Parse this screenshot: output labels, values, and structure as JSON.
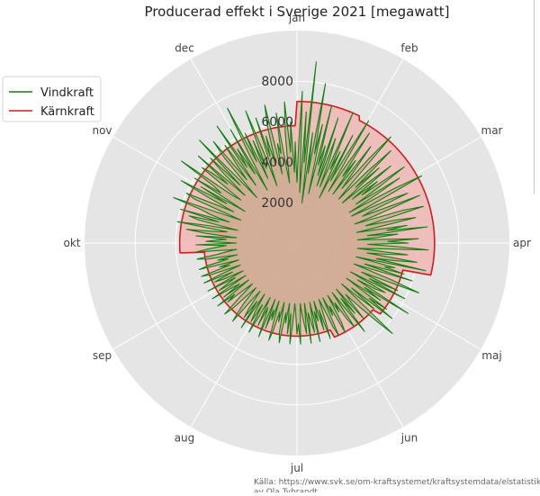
{
  "chart_data": {
    "type": "polar-line",
    "title": "Producerad effekt i Sverige 2021 [megawatt]",
    "theta_labels": [
      "jan",
      "feb",
      "mar",
      "apr",
      "maj",
      "jun",
      "jul",
      "aug",
      "sep",
      "okt",
      "nov",
      "dec"
    ],
    "r_ticks": [
      2000,
      4000,
      6000,
      8000
    ],
    "r_tick_labels": [
      "2000",
      "4000",
      "6000",
      "8000"
    ],
    "rlim": [
      0,
      10500
    ],
    "grid": true,
    "legend_position": "upper-left",
    "source": "Källa: https://www.svk.se/om-kraftsystemet/kraftsystemdata/elstatistik/\nav Ola Tybrandt",
    "series": [
      {
        "name": "Vindkraft",
        "color": "#138013",
        "fill": "#b9a27a",
        "values": [
          3000,
          5000,
          7500,
          2500,
          6500,
          4000,
          9000,
          2000,
          5500,
          3500,
          8000,
          4500,
          6000,
          2500,
          7000,
          4000,
          5000,
          3500,
          6500,
          3000,
          5500,
          4500,
          3000,
          7000,
          4000,
          5000,
          2500,
          6000,
          3500,
          5000,
          7000,
          3000,
          4500,
          6500,
          4000,
          5000,
          3000,
          6000,
          4500,
          3500,
          5500,
          7000,
          4000,
          3000,
          5000,
          6500,
          4000,
          5500,
          3000,
          4500,
          6000,
          3500,
          5000,
          4000,
          6500,
          5000,
          3500,
          6000,
          4500,
          3000,
          5500,
          7000,
          4500,
          3000,
          5000,
          6000,
          4000,
          3500,
          6500,
          5000,
          4000,
          3000,
          5500,
          6500,
          4500,
          3500,
          5000,
          6000,
          4000,
          3000,
          5500,
          4500,
          6500,
          3500,
          5000,
          4000,
          3000,
          6000,
          4500,
          5500,
          3500,
          5000,
          6500,
          4000,
          3000,
          5500,
          4500,
          3500,
          6000,
          5000,
          4000,
          6500,
          3000,
          5000,
          4500,
          5500,
          3500,
          6000,
          4000,
          3000,
          5000,
          6500,
          4500,
          3500,
          5500,
          4000,
          6000,
          3000,
          5000,
          4500,
          3500,
          6500,
          4000,
          5000,
          3000,
          5500,
          4500,
          6000,
          3500,
          5000,
          4000,
          3000,
          6500,
          5500,
          4500,
          3500,
          4000,
          5000,
          3000,
          4500,
          3500,
          5500,
          4000,
          3000,
          5000,
          4500,
          3500,
          4000,
          3000,
          4500,
          5000,
          3500,
          4000,
          3000,
          5000,
          4500,
          3500,
          3000,
          4000,
          5000,
          3500,
          4500,
          3000,
          4000,
          3500,
          5000,
          3000,
          4500,
          4000,
          3500,
          5000,
          3000,
          4500,
          4000,
          3500,
          3000,
          5000,
          4000,
          4500,
          3500,
          3000,
          4000,
          5000,
          3500,
          4500,
          3000,
          4000,
          3500,
          5000,
          4500,
          3000,
          4000,
          3500,
          4500,
          5000,
          3000,
          4000,
          3500,
          4500,
          3000,
          5000,
          4000,
          3500,
          4500,
          3000,
          4000,
          5000,
          3500,
          4500,
          4000,
          3000,
          5000,
          3500,
          4500,
          4000,
          3000,
          3500,
          5000,
          4500,
          4000,
          3000,
          3500,
          4500,
          5000,
          4000,
          3000,
          3500,
          4500,
          4000,
          5000,
          3000,
          4500,
          3500,
          4000,
          5000,
          3000,
          4500,
          4000,
          3500,
          5000,
          3000,
          4000,
          4500,
          3500,
          5000,
          4000,
          3000,
          4500,
          5000,
          3500,
          4000,
          3000,
          5000,
          4500,
          3500,
          4000,
          3000,
          4500,
          5000,
          4000,
          3500,
          3000,
          5000,
          4500,
          4000,
          3500,
          5000,
          3000,
          4500,
          4000,
          3500,
          5000,
          3000,
          4500,
          5500,
          4000,
          3500,
          6000,
          4500,
          3000,
          5000,
          5500,
          4000,
          6000,
          3500,
          4500,
          5000,
          6500,
          4000,
          3000,
          5500,
          6000,
          4500,
          3500,
          5000,
          6500,
          4000,
          5500,
          3000,
          6000,
          4500,
          5000,
          7000,
          4000,
          3500,
          6000,
          5500,
          4500,
          6500,
          3500,
          5000,
          6000,
          4000,
          7000,
          4500,
          3000,
          5500,
          6500,
          4000,
          5000,
          6000,
          3500,
          7000,
          4500,
          5500,
          4000,
          6500,
          3000,
          5000,
          7500,
          4500,
          6000,
          3500,
          5500,
          4000,
          7000,
          5000,
          3000,
          6500,
          4500,
          5500,
          4000,
          6000,
          7000,
          3500,
          5000,
          4500,
          6500,
          4000,
          3000,
          5500,
          7000,
          4500,
          6000,
          3500,
          5000
        ]
      },
      {
        "name": "Kärnkraft",
        "color": "#cc1f1f",
        "fill": "#f2b6b6",
        "values": [
          7000,
          7000,
          7000,
          7000,
          7000,
          7000,
          7000,
          7000,
          7000,
          7000,
          7000,
          7000,
          7000,
          7000,
          7000,
          7000,
          7000,
          7000,
          7000,
          7000,
          7000,
          7000,
          7000,
          7000,
          7000,
          7000,
          7000,
          7000,
          7000,
          7000,
          7000,
          6800,
          6800,
          6800,
          6800,
          6800,
          6800,
          6800,
          6800,
          6800,
          6800,
          6800,
          6800,
          6800,
          6800,
          6800,
          6800,
          6800,
          6800,
          6800,
          6800,
          6800,
          6800,
          6800,
          6800,
          6800,
          6800,
          6800,
          6800,
          6800,
          6800,
          6800,
          6800,
          6800,
          6800,
          6800,
          6800,
          6800,
          6800,
          6800,
          6800,
          6800,
          6800,
          6800,
          6800,
          6800,
          6800,
          6800,
          6800,
          6800,
          6800,
          6800,
          6800,
          6800,
          6800,
          6800,
          6800,
          6800,
          6800,
          6800,
          6800,
          6800,
          6800,
          6800,
          6800,
          6800,
          6800,
          6800,
          6800,
          6800,
          6800,
          6800,
          6800,
          6800,
          6800,
          6800,
          6800,
          6800,
          6800,
          6800,
          6800,
          6800,
          6800,
          6800,
          6800,
          6800,
          6800,
          6800,
          6800,
          6800,
          5400,
          5400,
          5400,
          5400,
          5400,
          5400,
          5400,
          5400,
          5400,
          5400,
          5400,
          5400,
          5400,
          5400,
          5400,
          5400,
          5400,
          5400,
          5400,
          5400,
          5400,
          5400,
          5400,
          5400,
          5400,
          5400,
          5400,
          5400,
          5400,
          5400,
          5400,
          5000,
          5000,
          5000,
          5000,
          5000,
          5000,
          5000,
          5000,
          5000,
          5000,
          5000,
          5000,
          5000,
          5000,
          5000,
          5000,
          5000,
          5000,
          5000,
          5000,
          5000,
          5000,
          5000,
          5000,
          5000,
          5000,
          5000,
          5000,
          5000,
          5000,
          5000,
          5000,
          4600,
          4600,
          4600,
          4600,
          4600,
          4600,
          4600,
          4600,
          4600,
          4600,
          4600,
          4600,
          4600,
          4600,
          4600,
          4600,
          4600,
          4600,
          4600,
          4600,
          4600,
          4600,
          4600,
          4600,
          4600,
          4600,
          4600,
          4600,
          4600,
          4600,
          4600,
          4600,
          4600,
          4600,
          4600,
          4600,
          4600,
          4600,
          4600,
          4600,
          4600,
          4600,
          4600,
          4600,
          4600,
          4600,
          4600,
          4600,
          4600,
          4600,
          4600,
          4600,
          4600,
          4600,
          4600,
          4600,
          4600,
          4600,
          4600,
          4600,
          4600,
          4600,
          4600,
          4600,
          4600,
          4600,
          4600,
          4600,
          4600,
          4600,
          4600,
          4600,
          4600,
          4600,
          4600,
          4600,
          4600,
          4600,
          4600,
          4600,
          4600,
          4600,
          4600,
          4600,
          4600,
          4600,
          4600,
          4600,
          4600,
          4600,
          4600,
          4600,
          4600,
          4600,
          4600,
          4600,
          4600,
          4600,
          4600,
          4600,
          4600,
          4600,
          4600,
          4600,
          4600,
          4600,
          4600,
          4600,
          4600,
          4600,
          4600,
          4600,
          4600,
          4600,
          4600,
          4600,
          4600,
          4600,
          4600,
          4600,
          4600,
          4600,
          5800,
          5800,
          5800,
          5800,
          5800,
          5800,
          5800,
          5800,
          5800,
          5800,
          5800,
          5800,
          5800,
          5800,
          5800,
          5800,
          5800,
          5800,
          5800,
          5800,
          5800,
          5800,
          5800,
          5800,
          5800,
          5800,
          5800,
          5800,
          5800,
          5800,
          5800,
          5800,
          5800,
          5800,
          5800,
          5800,
          5800,
          5800,
          5800,
          5800,
          5800,
          5800,
          5800,
          5800,
          5800,
          5800,
          5800,
          5800,
          5800,
          5800,
          5800,
          5800,
          5800,
          5800,
          5800,
          5800,
          5800,
          5800,
          5800,
          5800,
          5800,
          5800,
          5800,
          5800,
          5800,
          5800,
          5800,
          5800,
          5800,
          5800,
          5800,
          5800,
          5800,
          5800,
          5800,
          5800,
          5800,
          5800,
          5800,
          5800,
          5800,
          5800,
          5800,
          5800,
          5800,
          5800,
          5800,
          5800,
          5800,
          5800,
          5800,
          5800,
          5800,
          5800,
          5800,
          5800,
          5800,
          5800,
          5800,
          5800,
          5800,
          5800,
          5800,
          5800,
          5800,
          5800,
          5800,
          5800,
          5800
        ]
      }
    ]
  }
}
